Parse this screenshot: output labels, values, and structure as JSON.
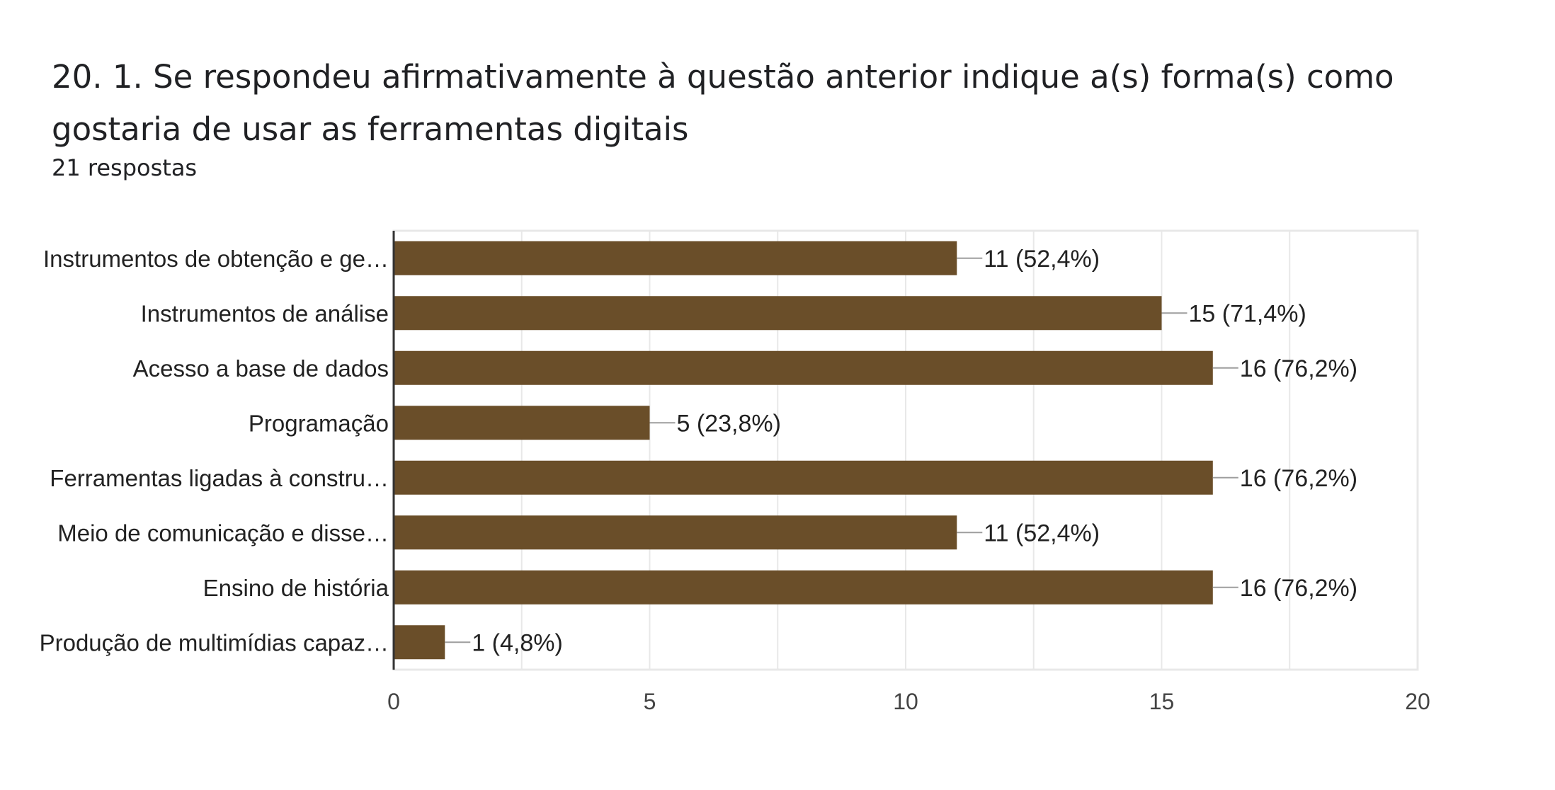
{
  "form": {
    "question": "20. 1. Se respondeu afirmativamente à questão anterior indique a(s) forma(s) como gostaria de usar as ferramentas digitais",
    "responses": "21 respostas"
  },
  "colors": {
    "bar": "#6a4e29",
    "grid": "#e8e8e8",
    "axis": "#333333",
    "leader": "#9e9e9e"
  },
  "chart_data": {
    "type": "bar",
    "orientation": "horizontal",
    "categories": [
      "Instrumentos de obtenção e ge…",
      "Instrumentos de análise",
      "Acesso a base de dados",
      "Programação",
      "Ferramentas ligadas à constru…",
      "Meio de comunicação e disse…",
      "Ensino de história",
      "Produção de multimídias capaz…"
    ],
    "values": [
      11,
      15,
      16,
      5,
      16,
      11,
      16,
      1
    ],
    "data_labels": [
      "11 (52,4%)",
      "15 (71,4%)",
      "16 (76,2%)",
      "5 (23,8%)",
      "16 (76,2%)",
      "11 (52,4%)",
      "16 (76,2%)",
      "1 (4,8%)"
    ],
    "xlim": [
      0,
      20
    ],
    "xticks": [
      0,
      5,
      10,
      15,
      20
    ],
    "grid": true,
    "legend": "none"
  }
}
